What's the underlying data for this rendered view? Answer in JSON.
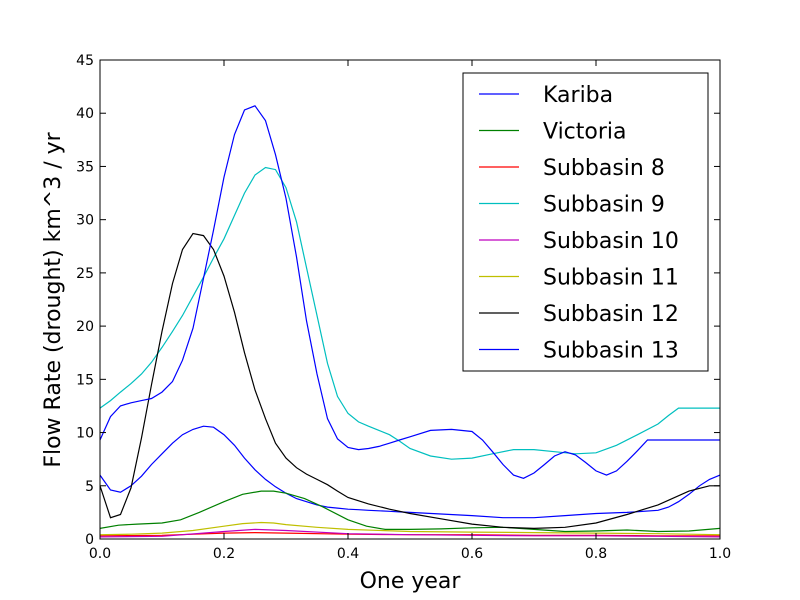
{
  "chart_data": {
    "type": "line",
    "title": "",
    "xlabel": "One year",
    "ylabel": "Flow Rate (drought) km^3 / yr",
    "xlim": [
      0.0,
      1.0
    ],
    "ylim": [
      0,
      45
    ],
    "xticks": [
      "0.0",
      "0.2",
      "0.4",
      "0.6",
      "0.8",
      "1.0"
    ],
    "yticks": [
      "0",
      "5",
      "10",
      "15",
      "20",
      "25",
      "30",
      "35",
      "40",
      "45"
    ],
    "grid": false,
    "legend_position": "top-right",
    "series": [
      {
        "name": "Kariba",
        "color": "#0000ff",
        "x": [
          0,
          0.017,
          0.033,
          0.05,
          0.067,
          0.083,
          0.1,
          0.117,
          0.133,
          0.15,
          0.167,
          0.183,
          0.2,
          0.217,
          0.233,
          0.25,
          0.267,
          0.283,
          0.3,
          0.317,
          0.333,
          0.35,
          0.367,
          0.383,
          0.4,
          0.417,
          0.433,
          0.45,
          0.467,
          0.483,
          0.5,
          0.55,
          0.6,
          0.65,
          0.7,
          0.75,
          0.8,
          0.85,
          0.9,
          0.917,
          0.933,
          0.95,
          0.967,
          0.983,
          1.0
        ],
        "y": [
          6.0,
          4.6,
          4.4,
          5.0,
          5.9,
          7.0,
          8.0,
          9.0,
          9.8,
          10.3,
          10.6,
          10.5,
          9.8,
          8.8,
          7.6,
          6.5,
          5.6,
          4.9,
          4.3,
          3.8,
          3.5,
          3.2,
          3.0,
          2.9,
          2.8,
          2.75,
          2.7,
          2.65,
          2.6,
          2.55,
          2.5,
          2.35,
          2.2,
          2.0,
          2.0,
          2.2,
          2.4,
          2.5,
          2.7,
          3.0,
          3.5,
          4.2,
          5.0,
          5.6,
          6.0
        ]
      },
      {
        "name": "Victoria",
        "color": "#008000",
        "x": [
          0,
          0.03,
          0.06,
          0.1,
          0.13,
          0.16,
          0.2,
          0.23,
          0.26,
          0.28,
          0.3,
          0.33,
          0.36,
          0.4,
          0.43,
          0.46,
          0.5,
          0.55,
          0.6,
          0.65,
          0.7,
          0.75,
          0.8,
          0.85,
          0.9,
          0.95,
          1.0
        ],
        "y": [
          1.0,
          1.3,
          1.4,
          1.5,
          1.8,
          2.5,
          3.5,
          4.2,
          4.5,
          4.5,
          4.3,
          3.8,
          3.0,
          1.8,
          1.2,
          0.9,
          0.9,
          0.95,
          1.05,
          1.1,
          0.9,
          0.7,
          0.75,
          0.85,
          0.7,
          0.75,
          1.0
        ]
      },
      {
        "name": "Subbasin 8",
        "color": "#ff0000",
        "x": [
          0,
          0.1,
          0.2,
          0.25,
          0.3,
          0.4,
          0.5,
          0.6,
          0.7,
          0.8,
          0.9,
          1.0
        ],
        "y": [
          0.3,
          0.35,
          0.55,
          0.6,
          0.55,
          0.45,
          0.4,
          0.4,
          0.35,
          0.35,
          0.3,
          0.3
        ]
      },
      {
        "name": "Subbasin 9",
        "color": "#00bfbf",
        "x": [
          0,
          0.017,
          0.033,
          0.05,
          0.067,
          0.083,
          0.1,
          0.117,
          0.133,
          0.15,
          0.167,
          0.183,
          0.2,
          0.217,
          0.233,
          0.25,
          0.267,
          0.283,
          0.3,
          0.317,
          0.333,
          0.35,
          0.367,
          0.383,
          0.4,
          0.417,
          0.433,
          0.45,
          0.467,
          0.483,
          0.5,
          0.533,
          0.567,
          0.6,
          0.633,
          0.667,
          0.7,
          0.733,
          0.767,
          0.8,
          0.833,
          0.867,
          0.9,
          0.917,
          0.933,
          0.95,
          0.967,
          0.983,
          1.0
        ],
        "y": [
          12.3,
          13.0,
          13.8,
          14.6,
          15.5,
          16.6,
          18.0,
          19.5,
          21.0,
          22.8,
          24.6,
          26.4,
          28.2,
          30.4,
          32.5,
          34.2,
          34.9,
          34.7,
          33.0,
          29.8,
          25.5,
          21.0,
          16.5,
          13.4,
          11.8,
          11.0,
          10.6,
          10.2,
          9.8,
          9.2,
          8.5,
          7.8,
          7.5,
          7.6,
          8.0,
          8.4,
          8.4,
          8.2,
          8.0,
          8.1,
          8.8,
          9.8,
          10.8,
          11.6,
          12.3,
          12.3,
          12.3,
          12.3,
          12.3
        ]
      },
      {
        "name": "Subbasin 10",
        "color": "#bf00bf",
        "x": [
          0,
          0.1,
          0.2,
          0.25,
          0.3,
          0.4,
          0.5,
          0.6,
          0.7,
          0.8,
          0.9,
          1.0
        ],
        "y": [
          0.2,
          0.25,
          0.7,
          0.9,
          0.8,
          0.5,
          0.4,
          0.35,
          0.3,
          0.3,
          0.25,
          0.2
        ]
      },
      {
        "name": "Subbasin 11",
        "color": "#bfbf00",
        "x": [
          0,
          0.05,
          0.1,
          0.15,
          0.2,
          0.23,
          0.26,
          0.28,
          0.3,
          0.35,
          0.4,
          0.5,
          0.6,
          0.7,
          0.8,
          0.9,
          1.0
        ],
        "y": [
          0.4,
          0.45,
          0.55,
          0.8,
          1.2,
          1.45,
          1.55,
          1.5,
          1.35,
          1.1,
          0.9,
          0.7,
          0.65,
          0.6,
          0.55,
          0.5,
          0.4
        ]
      },
      {
        "name": "Subbasin 12",
        "color": "#000000",
        "x": [
          0,
          0.017,
          0.033,
          0.05,
          0.067,
          0.083,
          0.1,
          0.117,
          0.133,
          0.15,
          0.167,
          0.183,
          0.2,
          0.217,
          0.233,
          0.25,
          0.267,
          0.283,
          0.3,
          0.317,
          0.333,
          0.35,
          0.367,
          0.383,
          0.4,
          0.433,
          0.467,
          0.5,
          0.55,
          0.6,
          0.65,
          0.7,
          0.75,
          0.8,
          0.85,
          0.9,
          0.95,
          0.983,
          1.0
        ],
        "y": [
          5.0,
          2.0,
          2.3,
          4.8,
          9.5,
          14.5,
          19.5,
          24.0,
          27.2,
          28.7,
          28.5,
          27.2,
          24.7,
          21.3,
          17.5,
          14.0,
          11.3,
          9.0,
          7.6,
          6.7,
          6.1,
          5.6,
          5.1,
          4.5,
          3.9,
          3.3,
          2.8,
          2.4,
          1.9,
          1.4,
          1.1,
          1.0,
          1.1,
          1.5,
          2.3,
          3.2,
          4.5,
          5.0,
          5.0
        ]
      },
      {
        "name": "Subbasin 13",
        "color": "#0000ff",
        "x": [
          0,
          0.017,
          0.033,
          0.05,
          0.067,
          0.083,
          0.1,
          0.117,
          0.133,
          0.15,
          0.167,
          0.183,
          0.2,
          0.217,
          0.233,
          0.25,
          0.267,
          0.283,
          0.3,
          0.317,
          0.333,
          0.35,
          0.367,
          0.383,
          0.4,
          0.417,
          0.433,
          0.45,
          0.467,
          0.483,
          0.5,
          0.533,
          0.567,
          0.6,
          0.617,
          0.633,
          0.65,
          0.667,
          0.683,
          0.7,
          0.717,
          0.733,
          0.75,
          0.767,
          0.783,
          0.8,
          0.817,
          0.833,
          0.85,
          0.867,
          0.883,
          0.9,
          0.917,
          0.933,
          0.95,
          0.967,
          0.983,
          1.0
        ],
        "y": [
          9.3,
          11.5,
          12.5,
          12.8,
          13.0,
          13.2,
          13.8,
          14.8,
          16.8,
          19.8,
          24.5,
          29.0,
          34.0,
          38.0,
          40.3,
          40.7,
          39.3,
          36.1,
          32.0,
          26.5,
          20.5,
          15.5,
          11.3,
          9.4,
          8.6,
          8.4,
          8.5,
          8.7,
          9.0,
          9.3,
          9.6,
          10.2,
          10.3,
          10.1,
          9.3,
          8.2,
          7.0,
          6.0,
          5.7,
          6.2,
          7.0,
          7.8,
          8.2,
          7.9,
          7.2,
          6.4,
          6.0,
          6.4,
          7.3,
          8.3,
          9.3,
          9.3,
          9.3,
          9.3,
          9.3,
          9.3,
          9.3,
          9.3
        ]
      }
    ]
  }
}
